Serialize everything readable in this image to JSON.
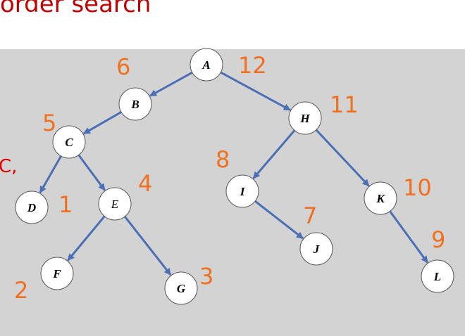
{
  "slide": {
    "title": "order search",
    "stray_text": "C,"
  },
  "colors": {
    "title": "#c00000",
    "panel": "#d3d3d3",
    "edge": "#4a6fb5",
    "node_fill": "#ffffff",
    "annotation": "#f07020"
  },
  "tree": {
    "nodes": [
      {
        "id": "A",
        "label": "A",
        "order": "12"
      },
      {
        "id": "B",
        "label": "B",
        "order": "6"
      },
      {
        "id": "C",
        "label": "C",
        "order": "5"
      },
      {
        "id": "D",
        "label": "D",
        "order": "1"
      },
      {
        "id": "E",
        "label": "E",
        "order": "4"
      },
      {
        "id": "F",
        "label": "F",
        "order": "2"
      },
      {
        "id": "G",
        "label": "G",
        "order": "3"
      },
      {
        "id": "H",
        "label": "H",
        "order": "11"
      },
      {
        "id": "I",
        "label": "I",
        "order": "8"
      },
      {
        "id": "J",
        "label": "J",
        "order": "7"
      },
      {
        "id": "K",
        "label": "K",
        "order": "10"
      },
      {
        "id": "L",
        "label": "L",
        "order": "9"
      }
    ],
    "edges": [
      [
        "A",
        "B"
      ],
      [
        "A",
        "H"
      ],
      [
        "B",
        "C"
      ],
      [
        "C",
        "D"
      ],
      [
        "C",
        "E"
      ],
      [
        "E",
        "F"
      ],
      [
        "E",
        "G"
      ],
      [
        "H",
        "I"
      ],
      [
        "H",
        "K"
      ],
      [
        "I",
        "J"
      ],
      [
        "K",
        "L"
      ]
    ]
  }
}
